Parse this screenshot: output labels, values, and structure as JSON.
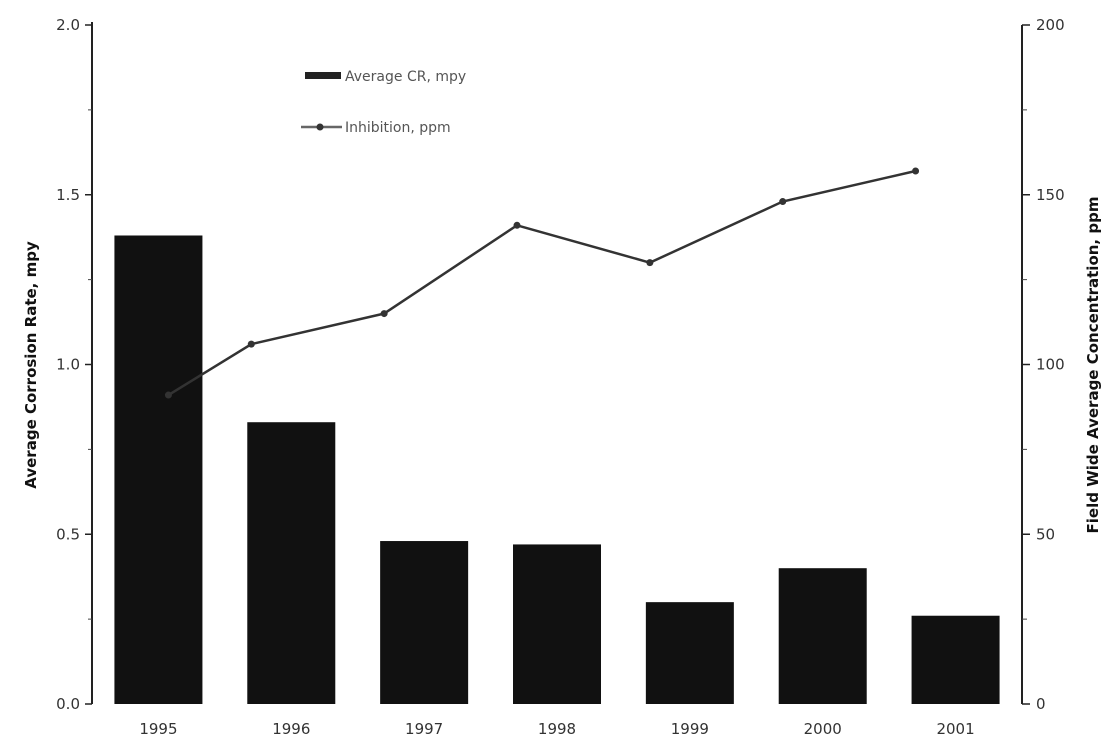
{
  "chart_data": {
    "type": "bar",
    "categories": [
      "1995",
      "1996",
      "1997",
      "1998",
      "1999",
      "2000",
      "2001"
    ],
    "series": [
      {
        "name": "Average CR, mpy",
        "type": "bar",
        "axis": "left",
        "color": "#111111",
        "values": [
          1.38,
          0.83,
          0.48,
          0.47,
          0.3,
          0.4,
          0.26
        ]
      },
      {
        "name": "Inhibition, ppm",
        "type": "line",
        "axis": "right",
        "color": "#333333",
        "values": [
          91,
          106,
          115,
          141,
          130,
          148,
          157
        ]
      }
    ],
    "ylabel": "Average Corrosion Rate, mpy",
    "y2label": "Field Wide Average Concentration, ppm",
    "ylim": [
      0,
      2.0
    ],
    "y2lim": [
      0,
      200
    ],
    "yticks": [
      "0.0",
      "0.5",
      "1.0",
      "1.5",
      "2.0"
    ],
    "y2ticks": [
      "0",
      "50",
      "100",
      "150",
      "200"
    ],
    "grid": false,
    "legend_position": "top-left"
  }
}
